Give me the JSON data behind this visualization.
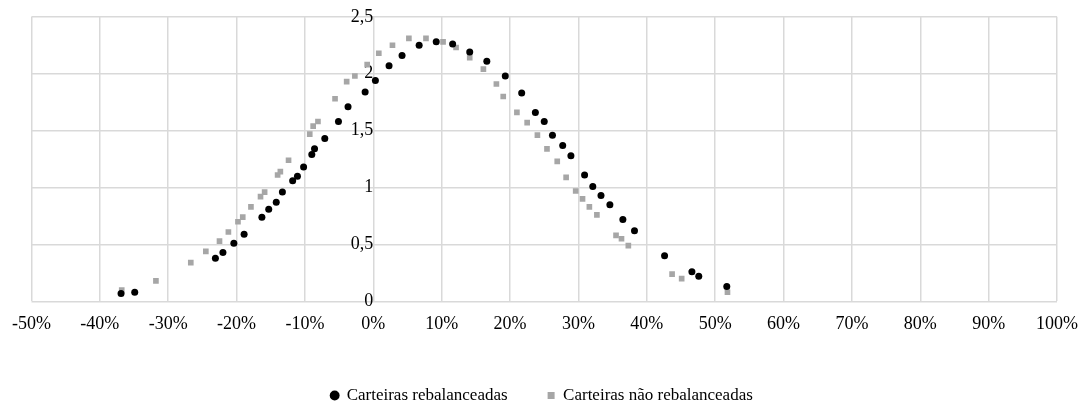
{
  "chart_data": {
    "type": "scatter",
    "grid": true,
    "legend": "bottom",
    "xlim": [
      -50,
      100
    ],
    "xticks": [
      {
        "value": -50,
        "label": "-50%"
      },
      {
        "value": -40,
        "label": "-40%"
      },
      {
        "value": -30,
        "label": "-30%"
      },
      {
        "value": -20,
        "label": "-20%"
      },
      {
        "value": -10,
        "label": "-10%"
      },
      {
        "value": 0,
        "label": "0%"
      },
      {
        "value": 10,
        "label": "10%"
      },
      {
        "value": 20,
        "label": "20%"
      },
      {
        "value": 30,
        "label": "30%"
      },
      {
        "value": 40,
        "label": "40%"
      },
      {
        "value": 50,
        "label": "50%"
      },
      {
        "value": 60,
        "label": "60%"
      },
      {
        "value": 70,
        "label": "70%"
      },
      {
        "value": 80,
        "label": "80%"
      },
      {
        "value": 90,
        "label": "90%"
      },
      {
        "value": 100,
        "label": "100%"
      }
    ],
    "ylim": [
      0,
      2.5
    ],
    "yticks": [
      0,
      {
        "value": 0.5,
        "label": "0,5"
      },
      1,
      {
        "value": 1.5,
        "label": "1,5"
      },
      2,
      {
        "value": 2.5,
        "label": "2,5"
      }
    ],
    "series": [
      {
        "name": "Carteiras rebalanceadas",
        "color": "#000000",
        "marker": "circle",
        "x": [
          -36.9,
          -34.9,
          -23.1,
          -22.0,
          -20.4,
          -18.9,
          -16.3,
          -15.3,
          -14.2,
          -13.3,
          -11.8,
          -11.1,
          -10.2,
          -9.0,
          -8.6,
          -7.1,
          -5.1,
          -3.7,
          -1.2,
          0.3,
          2.3,
          4.2,
          6.7,
          9.2,
          11.6,
          14.1,
          16.6,
          19.3,
          21.7,
          23.7,
          25.0,
          26.2,
          27.7,
          28.9,
          30.9,
          32.1,
          33.3,
          34.6,
          36.5,
          38.2,
          42.6,
          46.6,
          47.6,
          51.7
        ],
        "values": [
          0.07,
          0.08,
          0.38,
          0.43,
          0.51,
          0.59,
          0.74,
          0.81,
          0.87,
          0.96,
          1.06,
          1.1,
          1.18,
          1.29,
          1.34,
          1.43,
          1.58,
          1.71,
          1.84,
          1.94,
          2.07,
          2.16,
          2.25,
          2.28,
          2.26,
          2.19,
          2.11,
          1.98,
          1.83,
          1.66,
          1.58,
          1.46,
          1.37,
          1.28,
          1.11,
          1.01,
          0.93,
          0.85,
          0.72,
          0.62,
          0.4,
          0.26,
          0.22,
          0.13
        ]
      },
      {
        "name": "Carteiras não rebalanceadas",
        "color": "#a6a6a6",
        "marker": "square",
        "x": [
          -36.8,
          -31.8,
          -26.7,
          -24.5,
          -22.5,
          -21.2,
          -19.8,
          -19.1,
          -17.9,
          -16.5,
          -15.9,
          -14.0,
          -13.6,
          -12.4,
          -9.3,
          -8.8,
          -8.1,
          -5.6,
          -3.9,
          -2.7,
          -0.9,
          0.8,
          2.8,
          5.2,
          7.7,
          10.2,
          12.1,
          14.1,
          16.1,
          18.0,
          19.0,
          21.0,
          22.5,
          24.0,
          25.4,
          26.9,
          28.2,
          29.6,
          30.6,
          31.6,
          32.7,
          35.5,
          36.3,
          37.3,
          43.7,
          45.1,
          51.8
        ],
        "values": [
          0.1,
          0.18,
          0.34,
          0.44,
          0.53,
          0.61,
          0.7,
          0.74,
          0.83,
          0.92,
          0.96,
          1.11,
          1.14,
          1.24,
          1.47,
          1.54,
          1.58,
          1.78,
          1.93,
          1.98,
          2.08,
          2.18,
          2.25,
          2.31,
          2.31,
          2.28,
          2.23,
          2.14,
          2.04,
          1.91,
          1.8,
          1.66,
          1.57,
          1.46,
          1.34,
          1.23,
          1.09,
          0.97,
          0.9,
          0.83,
          0.76,
          0.58,
          0.55,
          0.49,
          0.24,
          0.2,
          0.08
        ]
      }
    ]
  }
}
